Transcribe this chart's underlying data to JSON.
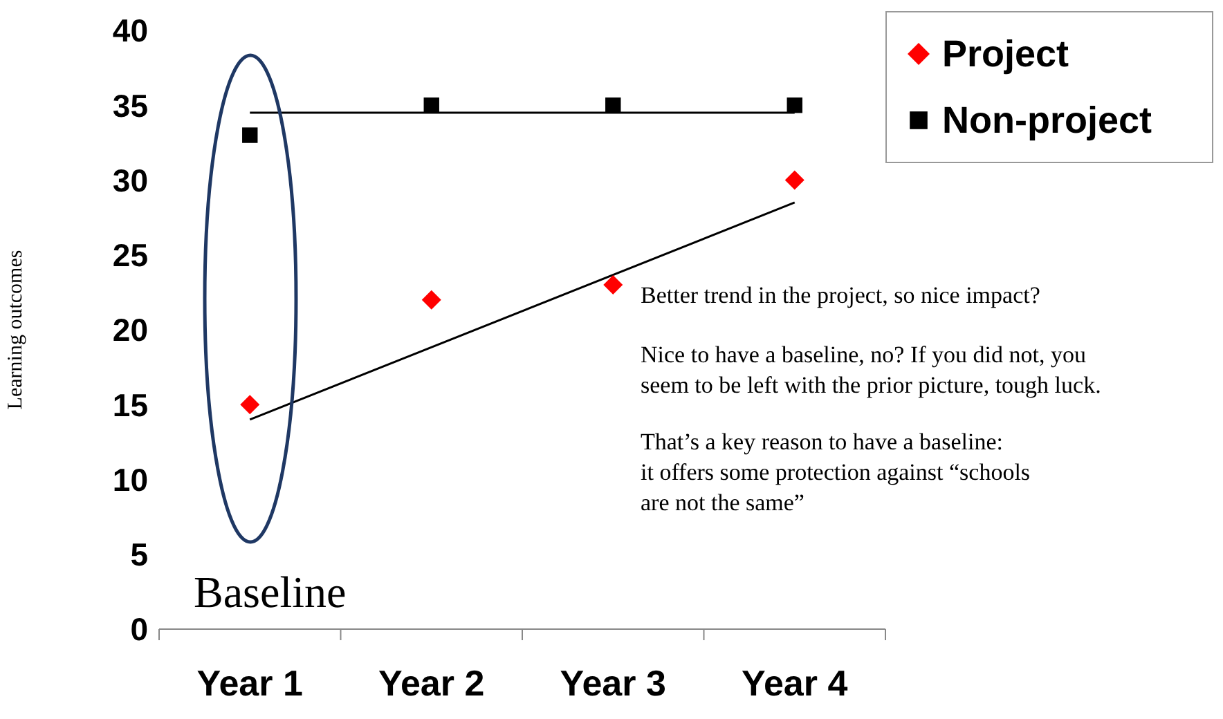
{
  "chart_data": {
    "type": "scatter",
    "ylabel": "Learning outcomes",
    "categories": [
      "Year 1",
      "Year 2",
      "Year 3",
      "Year 4"
    ],
    "ylim": [
      0,
      40
    ],
    "yticks": [
      0,
      5,
      10,
      15,
      20,
      25,
      30,
      35,
      40
    ],
    "legend": "top right",
    "series": [
      {
        "name": "Project",
        "marker": "diamond",
        "color": "#ff0000",
        "values": [
          15,
          22,
          23,
          30
        ]
      },
      {
        "name": "Non-project",
        "marker": "square",
        "color": "#000000",
        "values": [
          33,
          35,
          35,
          35
        ]
      },
      {
        "type": "line",
        "color": "#000000",
        "x": [
          "Year 1",
          "Year 4"
        ],
        "values": [
          14,
          28.5
        ]
      },
      {
        "type": "line",
        "color": "#000000",
        "x": [
          "Year 1",
          "Year 4"
        ],
        "values": [
          34.5,
          34.5
        ]
      }
    ],
    "annotations": [
      "Baseline",
      "Better trend in the project, so nice impact?",
      "Nice to have a baseline, no?  If you did not, you\nseem to be left with the prior picture, tough luck.",
      "That’s a key reason to have a baseline:\nit offers some protection against “schools\nare not the same”"
    ]
  }
}
